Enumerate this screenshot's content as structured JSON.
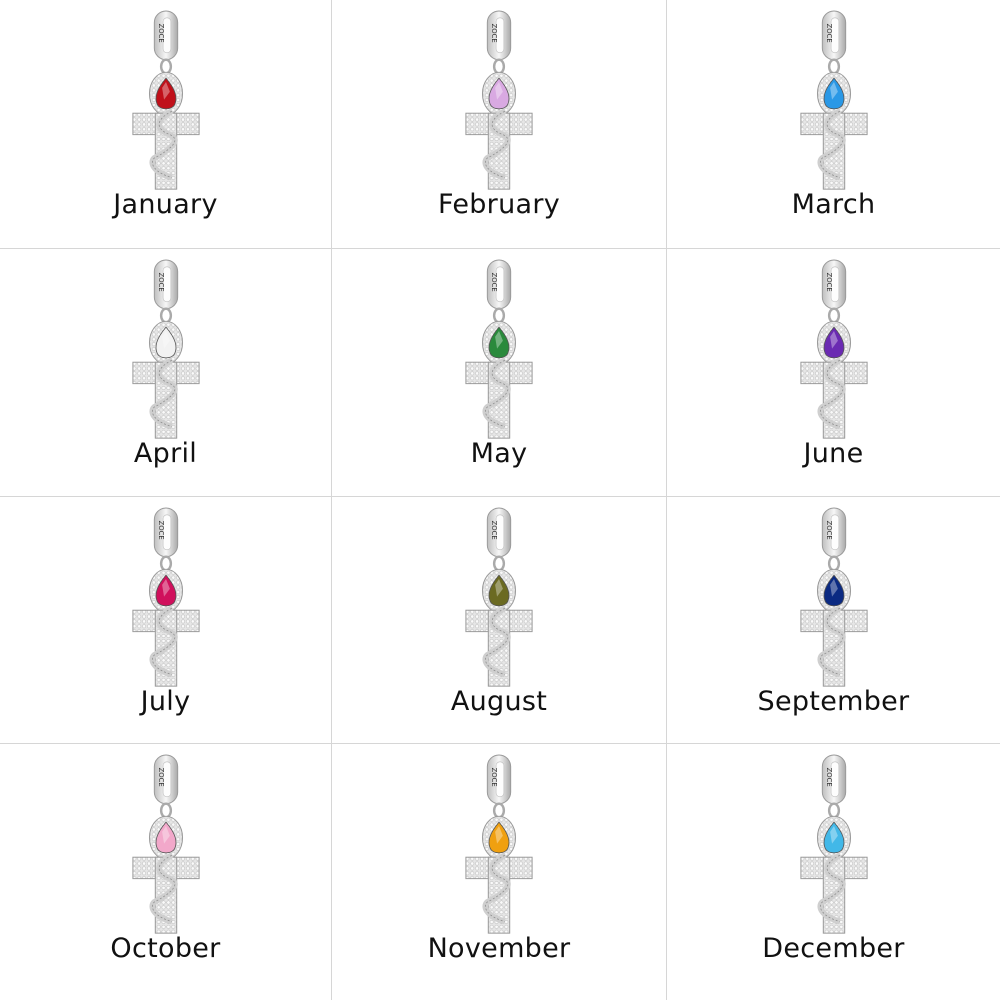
{
  "brand_engraving": "ZOCE",
  "items": [
    {
      "label": "January",
      "gem_color": "#c0101a"
    },
    {
      "label": "February",
      "gem_color": "#d9a9e2"
    },
    {
      "label": "March",
      "gem_color": "#2a98e6"
    },
    {
      "label": "April",
      "gem_color": "#f2f2f2"
    },
    {
      "label": "May",
      "gem_color": "#2a8a3c"
    },
    {
      "label": "June",
      "gem_color": "#6a2ab2"
    },
    {
      "label": "July",
      "gem_color": "#d0105c"
    },
    {
      "label": "August",
      "gem_color": "#6b6a22"
    },
    {
      "label": "September",
      "gem_color": "#0b2a82"
    },
    {
      "label": "October",
      "gem_color": "#f2a8ca"
    },
    {
      "label": "November",
      "gem_color": "#f0a010"
    },
    {
      "label": "December",
      "gem_color": "#42b8e8"
    }
  ]
}
